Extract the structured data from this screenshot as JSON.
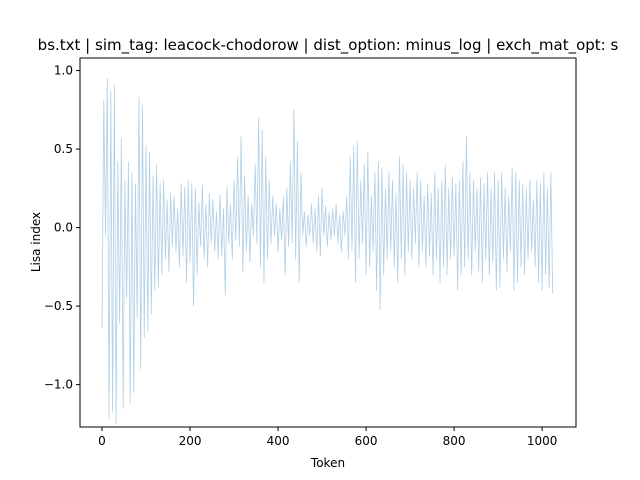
{
  "chart_data": {
    "type": "line",
    "title": "bs.txt | sim_tag: leacock-chodorow | dist_option: minus_log | exch_mat_opt: s",
    "xlabel": "Token",
    "ylabel": "Lisa index",
    "xlim": [
      -50,
      1077
    ],
    "ylim": [
      -1.27,
      1.08
    ],
    "x_ticks": [
      {
        "value": 0,
        "label": "0"
      },
      {
        "value": 200,
        "label": "200"
      },
      {
        "value": 400,
        "label": "400"
      },
      {
        "value": 600,
        "label": "600"
      },
      {
        "value": 800,
        "label": "800"
      },
      {
        "value": 1000,
        "label": "1000"
      }
    ],
    "y_ticks": [
      {
        "value": -1.0,
        "label": "−1.0"
      },
      {
        "value": -0.5,
        "label": "−0.5"
      },
      {
        "value": 0.0,
        "label": "0.0"
      },
      {
        "value": 0.5,
        "label": "0.5"
      },
      {
        "value": 1.0,
        "label": "1.0"
      }
    ],
    "grid": false,
    "series": [
      {
        "color": "#1f77b4",
        "opacity": 0.35,
        "x_start": 0,
        "x_step": 4,
        "values": [
          -0.64,
          0.81,
          -0.05,
          0.95,
          -1.22,
          0.87,
          -1.17,
          0.91,
          -1.25,
          0.42,
          -0.61,
          0.57,
          -1.15,
          0.3,
          -0.45,
          0.42,
          -1.12,
          0.35,
          -1.05,
          0.28,
          -0.58,
          0.83,
          -0.9,
          0.78,
          -0.7,
          0.52,
          -0.66,
          0.48,
          -0.55,
          0.33,
          -0.4,
          0.4,
          -0.38,
          0.28,
          -0.3,
          0.3,
          -0.2,
          0.18,
          -0.28,
          0.22,
          -0.12,
          0.2,
          -0.15,
          0.12,
          -0.25,
          0.28,
          -0.18,
          0.26,
          -0.35,
          0.3,
          -0.22,
          0.28,
          -0.5,
          0.25,
          -0.3,
          0.16,
          -0.12,
          0.27,
          -0.2,
          0.15,
          -0.25,
          0.22,
          -0.1,
          0.18,
          -0.15,
          0.1,
          -0.2,
          0.21,
          -0.18,
          0.12,
          -0.43,
          0.26,
          -0.1,
          0.15,
          -0.2,
          0.3,
          -0.08,
          0.45,
          -0.12,
          0.58,
          -0.28,
          0.33,
          -0.15,
          0.2,
          -0.22,
          0.15,
          -0.05,
          0.4,
          -0.1,
          0.7,
          -0.25,
          0.62,
          -0.35,
          0.45,
          -0.2,
          0.3,
          -0.1,
          0.2,
          -0.05,
          0.15,
          -0.15,
          0.12,
          -0.08,
          0.2,
          -0.3,
          0.25,
          -0.12,
          0.42,
          -0.1,
          0.75,
          -0.2,
          0.55,
          -0.35,
          0.35,
          -0.05,
          0.1,
          -0.12,
          0.08,
          -0.05,
          0.15,
          -0.1,
          0.12,
          -0.15,
          0.2,
          -0.18,
          0.25,
          -0.05,
          0.14,
          -0.12,
          0.1,
          -0.08,
          0.12,
          -0.05,
          0.15,
          -0.1,
          0.08,
          -0.15,
          0.1,
          -0.05,
          0.2,
          -0.2,
          0.45,
          -0.15,
          0.52,
          -0.35,
          0.55,
          -0.2,
          0.3,
          -0.1,
          0.4,
          -0.3,
          0.48,
          -0.25,
          0.2,
          -0.15,
          0.35,
          -0.4,
          0.42,
          -0.52,
          0.38,
          -0.3,
          0.25,
          -0.2,
          0.35,
          -0.15,
          0.3,
          -0.25,
          0.22,
          -0.35,
          0.45,
          -0.2,
          0.4,
          -0.3,
          0.35,
          -0.15,
          0.3,
          -0.2,
          0.25,
          -0.1,
          0.35,
          -0.25,
          0.3,
          -0.15,
          0.2,
          -0.25,
          0.28,
          -0.18,
          0.22,
          -0.3,
          0.35,
          -0.2,
          0.25,
          -0.35,
          0.3,
          -0.25,
          0.4,
          -0.3,
          0.25,
          -0.2,
          0.32,
          -0.18,
          0.28,
          -0.4,
          0.3,
          -0.3,
          0.42,
          -0.25,
          0.58,
          -0.2,
          0.35,
          -0.3,
          0.3,
          -0.15,
          0.25,
          -0.28,
          0.32,
          -0.35,
          0.28,
          -0.2,
          0.35,
          -0.3,
          0.25,
          -0.22,
          0.35,
          -0.4,
          0.3,
          -0.38,
          0.35,
          -0.2,
          0.25,
          -0.28,
          0.2,
          -0.15,
          0.38,
          -0.4,
          0.35,
          -0.35,
          0.3,
          -0.25,
          0.28,
          -0.3,
          0.25,
          -0.2,
          0.3,
          -0.15,
          0.18,
          -0.25,
          0.3,
          -0.35,
          0.28,
          -0.4,
          0.35,
          -0.3,
          0.25,
          -0.38,
          0.35,
          -0.42
        ]
      }
    ]
  }
}
